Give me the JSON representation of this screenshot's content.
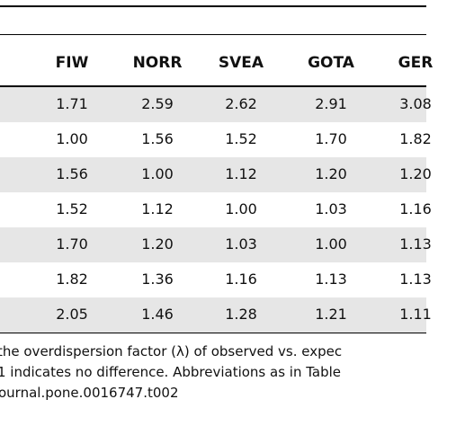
{
  "table": {
    "header": [
      "FIW",
      "NORR",
      "SVEA",
      "GOTA",
      "GER"
    ],
    "rows": [
      [
        "1.71",
        "2.59",
        "2.62",
        "2.91",
        "3.08"
      ],
      [
        "1.00",
        "1.56",
        "1.52",
        "1.70",
        "1.82"
      ],
      [
        "1.56",
        "1.00",
        "1.12",
        "1.20",
        "1.20"
      ],
      [
        "1.52",
        "1.12",
        "1.00",
        "1.03",
        "1.16"
      ],
      [
        "1.70",
        "1.20",
        "1.03",
        "1.00",
        "1.13"
      ],
      [
        "1.82",
        "1.36",
        "1.16",
        "1.13",
        "1.13"
      ],
      [
        "2.05",
        "1.46",
        "1.28",
        "1.21",
        "1.11"
      ]
    ]
  },
  "footnote": [
    "the overdispersion factor (λ) of observed vs. expec",
    "1 indicates no difference. Abbreviations as in Table",
    "ournal.pone.0016747.t002"
  ]
}
